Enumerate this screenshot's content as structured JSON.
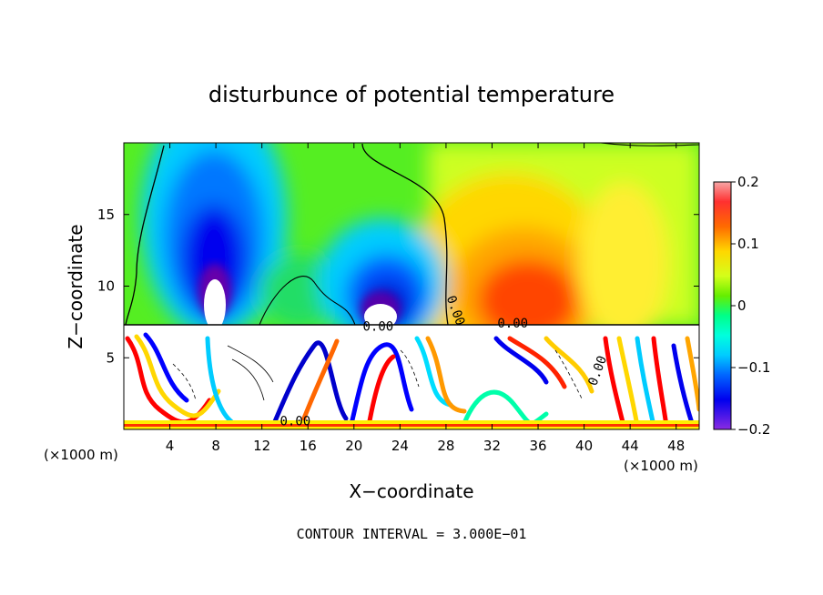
{
  "chart_data": {
    "type": "heatmap",
    "title": "disturbunce of potential temperature",
    "xlabel": "X−coordinate",
    "ylabel": "Z−coordinate",
    "x_unit_left": "(×1000 m)",
    "x_unit_right": "(×1000 m)",
    "xlim": [
      0,
      50
    ],
    "ylim": [
      0,
      20
    ],
    "xticks": [
      4,
      8,
      12,
      16,
      20,
      24,
      28,
      32,
      36,
      40,
      44,
      48
    ],
    "yticks": [
      5,
      10,
      15
    ],
    "colorbar": {
      "range": [
        -0.2,
        0.2
      ],
      "ticks": [
        "0.2",
        "0.1",
        "0",
        "−0.1",
        "−0.2"
      ],
      "colors": [
        "#f7a6a6",
        "#ff3030",
        "#ff0000",
        "#ff6a00",
        "#ffa500",
        "#ffd700",
        "#ffff33",
        "#d4ff1a",
        "#9cff00",
        "#66ee00",
        "#22dd22",
        "#00ff88",
        "#00ffdd",
        "#00ccff",
        "#0099ff",
        "#0055ff",
        "#0000ee",
        "#2222cc",
        "#6600aa",
        "#8a2be2"
      ]
    },
    "contour_labels": [
      "0.00",
      "0.00",
      "0.00",
      "0.00",
      "0.00"
    ],
    "features": [
      {
        "x": 8,
        "z": 13,
        "value": -0.2
      },
      {
        "x": 23,
        "z": 9.5,
        "value": -0.2
      },
      {
        "x": 35,
        "z": 11,
        "value": 0.15
      },
      {
        "x": 26,
        "z": 17,
        "value": 0.0
      }
    ],
    "annotation": "CONTOUR INTERVAL = 3.000E−01"
  }
}
